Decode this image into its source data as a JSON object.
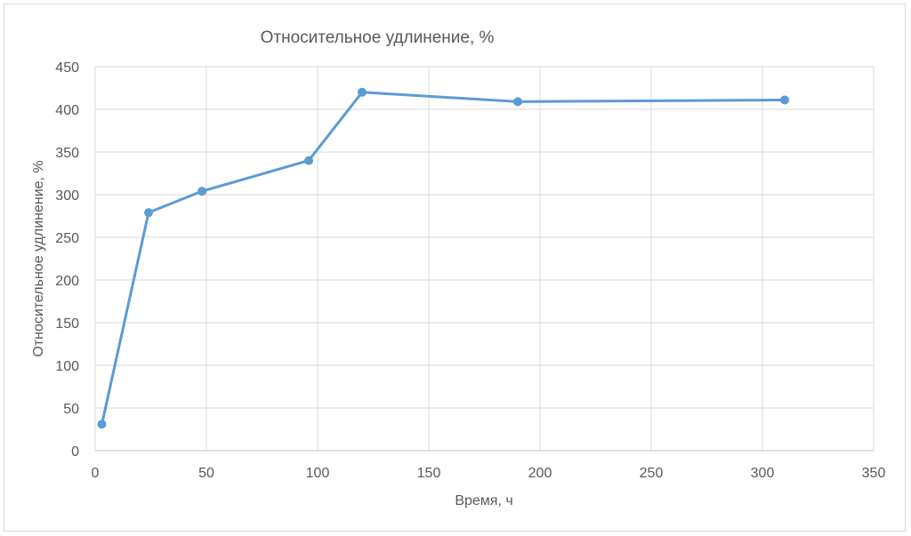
{
  "chart_data": {
    "type": "line",
    "title": "Относительное удлинение, %",
    "xlabel": "Время, ч",
    "ylabel": "Относительное удлинение, %",
    "xlim": [
      0,
      350
    ],
    "ylim": [
      0,
      450
    ],
    "xticks": [
      0,
      50,
      100,
      150,
      200,
      250,
      300,
      350
    ],
    "yticks": [
      0,
      50,
      100,
      150,
      200,
      250,
      300,
      350,
      400,
      450
    ],
    "grid": true,
    "legend": "none",
    "color": "#5b9bd5",
    "x": [
      3,
      24,
      48,
      96,
      120,
      190,
      310
    ],
    "y": [
      31,
      279,
      304,
      340,
      420,
      409,
      411
    ]
  }
}
